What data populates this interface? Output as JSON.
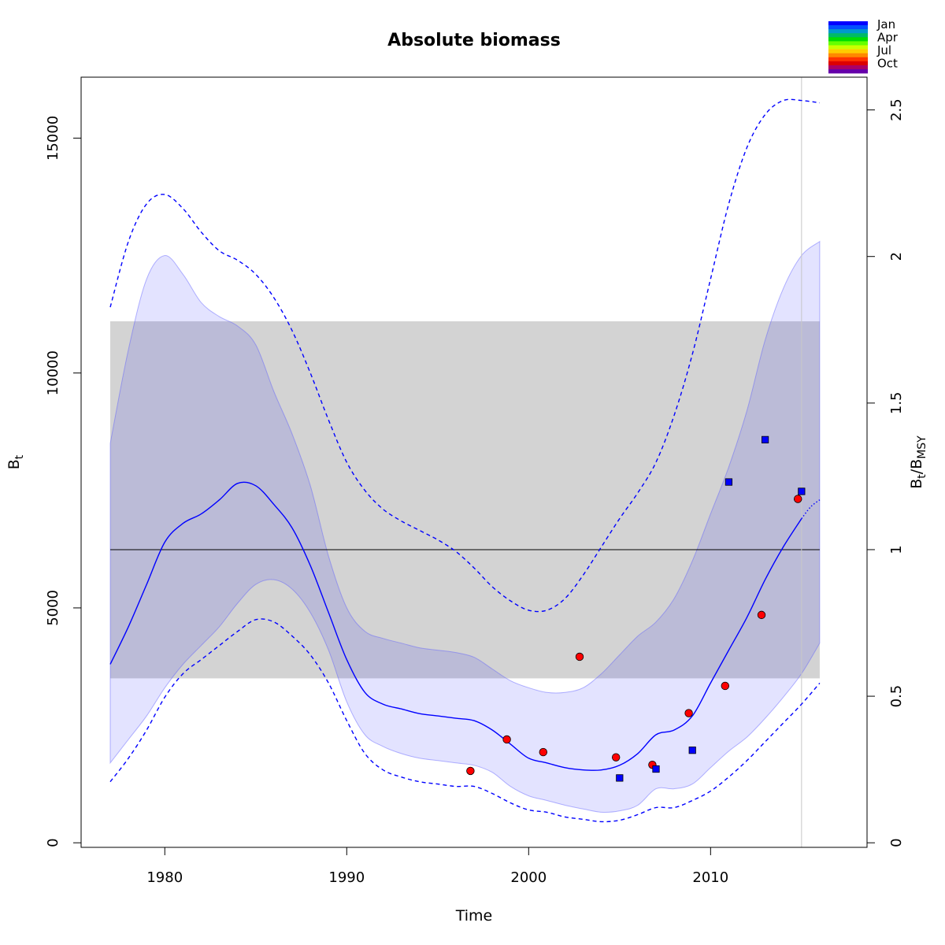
{
  "chart_data": {
    "type": "line",
    "title": "Absolute biomass",
    "xlabel": "Time",
    "ylabel": "B",
    "ylabel_sub": "t",
    "y2label_parts": [
      "B",
      "t",
      "/B",
      "MSY"
    ],
    "xlim": [
      1975.4,
      2018.6
    ],
    "ylim": [
      -97,
      16297
    ],
    "y2_scale_bmsy": 6240,
    "x_ticks": [
      1980,
      1990,
      2000,
      2010
    ],
    "y_ticks": [
      0,
      5000,
      10000,
      15000
    ],
    "y2_ticks": [
      0,
      0.5,
      1,
      1.5,
      2,
      2.5
    ],
    "y2_tick_labels": [
      "0",
      "0.5",
      "1",
      "1.5",
      "2",
      "2.5"
    ],
    "bmsy_line": 6240,
    "bmsy_ci": [
      3500,
      11100
    ],
    "vertical_line_x": 2015,
    "series": [
      {
        "name": "median",
        "style": "solid",
        "color": "#0000ff",
        "x": [
          1977,
          1978,
          1979,
          1980,
          1981,
          1982,
          1983,
          1984,
          1985,
          1986,
          1987,
          1988,
          1989,
          1990,
          1991,
          1992,
          1993,
          1994,
          1995,
          1996,
          1997,
          1998,
          1999,
          2000,
          2001,
          2002,
          2003,
          2004,
          2005,
          2006,
          2007,
          2008,
          2009,
          2010,
          2011,
          2012,
          2013,
          2014,
          2015
        ],
        "y": [
          3800,
          4600,
          5500,
          6400,
          6800,
          7000,
          7300,
          7650,
          7600,
          7200,
          6700,
          5900,
          4900,
          3900,
          3200,
          2950,
          2850,
          2750,
          2700,
          2650,
          2600,
          2400,
          2100,
          1800,
          1700,
          1600,
          1550,
          1550,
          1650,
          1900,
          2300,
          2400,
          2700,
          3400,
          4100,
          4800,
          5600,
          6300,
          6900
        ]
      },
      {
        "name": "prediction",
        "style": "dotted",
        "color": "#0000ff",
        "x": [
          2015,
          2015.5,
          2016
        ],
        "y": [
          6900,
          7150,
          7300
        ]
      },
      {
        "name": "upper",
        "style": "dashed",
        "color": "#0000ff",
        "x": [
          1977,
          1978,
          1979,
          1980,
          1981,
          1982,
          1983,
          1984,
          1985,
          1986,
          1987,
          1988,
          1989,
          1990,
          1991,
          1992,
          1993,
          1994,
          1995,
          1996,
          1997,
          1998,
          1999,
          2000,
          2001,
          2002,
          2003,
          2004,
          2005,
          2006,
          2007,
          2008,
          2009,
          2010,
          2011,
          2012,
          2013,
          2014,
          2015,
          2016
        ],
        "y": [
          11400,
          12800,
          13600,
          13800,
          13500,
          13000,
          12600,
          12400,
          12100,
          11600,
          10900,
          10000,
          9000,
          8100,
          7500,
          7100,
          6850,
          6650,
          6450,
          6200,
          5850,
          5450,
          5150,
          4950,
          4950,
          5200,
          5700,
          6300,
          6900,
          7450,
          8100,
          9100,
          10400,
          12000,
          13600,
          14800,
          15500,
          15800,
          15800,
          15750
        ]
      },
      {
        "name": "lower",
        "style": "dashed",
        "color": "#0000ff",
        "x": [
          1977,
          1978,
          1979,
          1980,
          1981,
          1982,
          1983,
          1984,
          1985,
          1986,
          1987,
          1988,
          1989,
          1990,
          1991,
          1992,
          1993,
          1994,
          1995,
          1996,
          1997,
          1998,
          1999,
          2000,
          2001,
          2002,
          2003,
          2004,
          2005,
          2006,
          2007,
          2008,
          2009,
          2010,
          2011,
          2012,
          2013,
          2014,
          2015,
          2016
        ],
        "y": [
          1300,
          1800,
          2400,
          3100,
          3600,
          3900,
          4200,
          4500,
          4750,
          4700,
          4400,
          4000,
          3400,
          2600,
          1900,
          1550,
          1400,
          1300,
          1250,
          1200,
          1200,
          1050,
          850,
          700,
          650,
          550,
          500,
          450,
          480,
          600,
          750,
          750,
          900,
          1100,
          1400,
          1750,
          2150,
          2550,
          2950,
          3400
        ]
      }
    ],
    "ci_band": {
      "x": [
        1977,
        1978,
        1979,
        1980,
        1981,
        1982,
        1983,
        1984,
        1985,
        1986,
        1987,
        1988,
        1989,
        1990,
        1991,
        1992,
        1993,
        1994,
        1995,
        1996,
        1997,
        1998,
        1999,
        2000,
        2001,
        2002,
        2003,
        2004,
        2005,
        2006,
        2007,
        2008,
        2009,
        2010,
        2011,
        2012,
        2013,
        2014,
        2015,
        2016
      ],
      "upper": [
        8500,
        10500,
        12000,
        12500,
        12100,
        11500,
        11200,
        11000,
        10600,
        9600,
        8700,
        7600,
        6100,
        5000,
        4500,
        4350,
        4250,
        4150,
        4100,
        4050,
        3950,
        3700,
        3450,
        3300,
        3200,
        3200,
        3300,
        3600,
        4000,
        4400,
        4700,
        5200,
        6000,
        7000,
        8000,
        9200,
        10700,
        11800,
        12500,
        12800
      ],
      "lower": [
        1700,
        2200,
        2700,
        3300,
        3800,
        4200,
        4600,
        5100,
        5500,
        5600,
        5400,
        4900,
        4100,
        3000,
        2300,
        2050,
        1900,
        1800,
        1750,
        1700,
        1650,
        1500,
        1200,
        1000,
        900,
        800,
        720,
        650,
        680,
        800,
        1150,
        1150,
        1250,
        1600,
        1950,
        2250,
        2650,
        3100,
        3600,
        4250
      ]
    },
    "observations": [
      {
        "name": "index 1",
        "marker": "circle",
        "color": "#ff0000",
        "x": [
          1996.8,
          1998.8,
          2000.8,
          2002.8,
          2004.8,
          2006.8,
          2008.8,
          2010.8,
          2012.8,
          2014.8
        ],
        "y": [
          1530,
          2200,
          1930,
          3960,
          1820,
          1660,
          2760,
          3340,
          4850,
          7320
        ]
      },
      {
        "name": "index 2",
        "marker": "square",
        "color": "#0000ff",
        "x": [
          2005,
          2007,
          2009,
          2011,
          2013,
          2015
        ],
        "y": [
          1380,
          1570,
          1970,
          7680,
          8580,
          7480
        ]
      }
    ],
    "legend": {
      "position": "top-right",
      "labels": [
        "Jan",
        "Apr",
        "Jul",
        "Oct"
      ],
      "colors": [
        "#0000ff",
        "#0050ff",
        "#0099cc",
        "#00bb66",
        "#00dd00",
        "#66ff00",
        "#ccff00",
        "#ffcc00",
        "#ff8800",
        "#ff3300",
        "#dd0000",
        "#aa0066",
        "#6600aa"
      ]
    }
  }
}
